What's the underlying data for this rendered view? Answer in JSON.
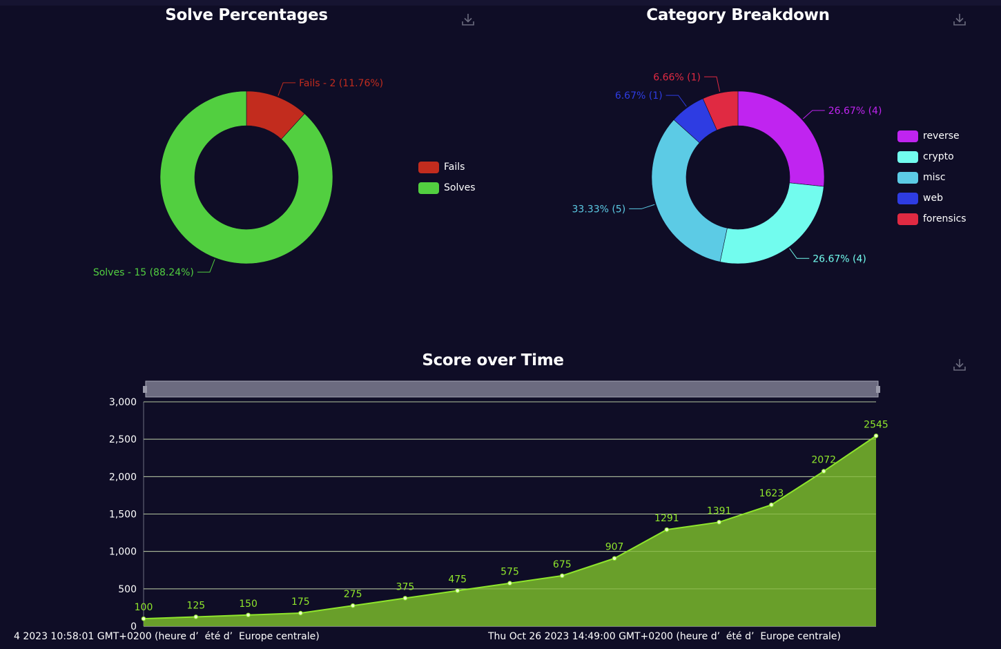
{
  "chart_data": [
    {
      "type": "pie",
      "title": "Solve Percentages",
      "donut": true,
      "slices": [
        {
          "name": "Fails",
          "value": 2,
          "label": "Fails - 2 (11.76%)",
          "color": "#c22c1e"
        },
        {
          "name": "Solves",
          "value": 15,
          "label": "Solves - 15 (88.24%)",
          "color": "#52cf40"
        }
      ],
      "legend_placement": "right"
    },
    {
      "type": "pie",
      "title": "Category Breakdown",
      "donut": true,
      "slices": [
        {
          "name": "reverse",
          "value": 4,
          "label": "26.67% (4)",
          "color": "#c024f0"
        },
        {
          "name": "crypto",
          "value": 4,
          "label": "26.67% (4)",
          "color": "#72fcee"
        },
        {
          "name": "misc",
          "value": 5,
          "label": "33.33% (5)",
          "color": "#5ccbe5"
        },
        {
          "name": "web",
          "value": 1,
          "label": "6.67% (1)",
          "color": "#2e3ce2"
        },
        {
          "name": "forensics",
          "value": 1,
          "label": "6.66% (1)",
          "color": "#e02a42"
        }
      ],
      "legend_placement": "right"
    },
    {
      "type": "area",
      "title": "Score over Time",
      "values": [
        100,
        125,
        150,
        175,
        275,
        375,
        475,
        575,
        675,
        907,
        1291,
        1391,
        1623,
        2072,
        2545
      ],
      "ylim": [
        0,
        3000
      ],
      "yticks": [
        0,
        500,
        1000,
        1500,
        2000,
        2500,
        3000
      ],
      "ytick_labels": [
        "0",
        "500",
        "1,000",
        "1,500",
        "2,000",
        "2,500",
        "3,000"
      ],
      "grid": true,
      "x_axis_labels": [
        "4 2023 10:58:01 GMT+0200 (heure d’  été d’  Europe centrale)",
        "Thu Oct 26 2023 14:49:00 GMT+0200 (heure d’  été d’  Europe centrale)"
      ],
      "line_color": "#8fe62c",
      "fill_color": "#6fa82a",
      "label_color": "#8fe62c"
    }
  ],
  "icons": {
    "download": "download-icon"
  }
}
